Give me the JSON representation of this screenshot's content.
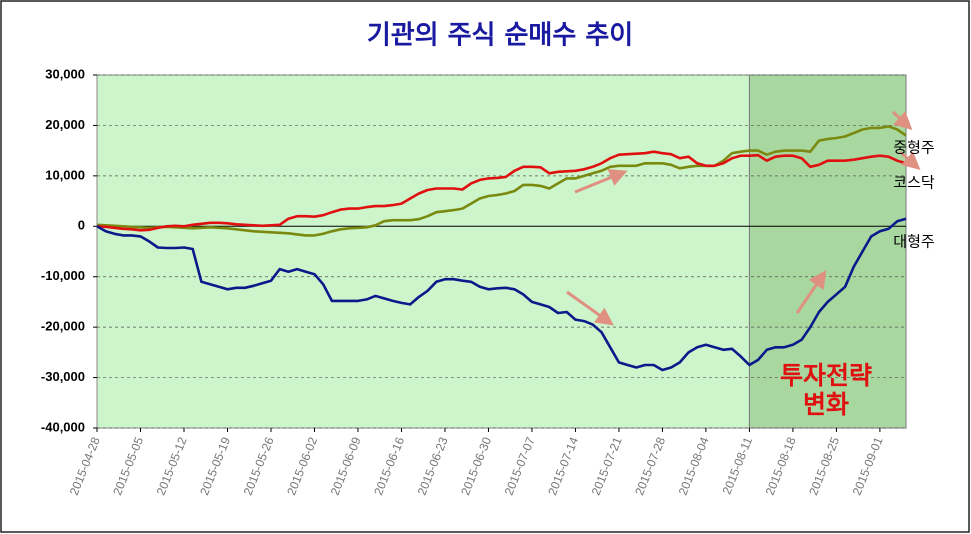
{
  "chart_data": {
    "type": "line",
    "title": "기관의 주식 순매수 추이",
    "annotation": [
      "투자전략",
      "변화"
    ],
    "categories": [
      "2015-04-28",
      null,
      null,
      null,
      null,
      "2015-05-05",
      null,
      null,
      null,
      null,
      "2015-05-12",
      null,
      null,
      null,
      null,
      "2015-05-19",
      null,
      null,
      null,
      null,
      "2015-05-26",
      null,
      null,
      null,
      null,
      "2015-06-02",
      null,
      null,
      null,
      null,
      "2015-06-09",
      null,
      null,
      null,
      null,
      "2015-06-16",
      null,
      null,
      null,
      null,
      "2015-06-23",
      null,
      null,
      null,
      null,
      "2015-06-30",
      null,
      null,
      null,
      null,
      "2015-07-07",
      null,
      null,
      null,
      null,
      "2015-07-14",
      null,
      null,
      null,
      null,
      "2015-07-21",
      null,
      null,
      null,
      null,
      "2015-07-28",
      null,
      null,
      null,
      null,
      "2015-08-04",
      null,
      null,
      null,
      null,
      "2015-08-11",
      null,
      null,
      null,
      null,
      "2015-08-18",
      null,
      null,
      null,
      null,
      "2015-08-25",
      null,
      null,
      null,
      null,
      "2015-09-01",
      null,
      null,
      null
    ],
    "series": [
      {
        "name": "중형주",
        "color": "#7a8a10",
        "values": [
          300,
          200,
          100,
          0,
          -100,
          -200,
          -300,
          -200,
          -100,
          -200,
          -300,
          -400,
          -300,
          -200,
          -300,
          -400,
          -600,
          -800,
          -1000,
          -1100,
          -1200,
          -1300,
          -1400,
          -1600,
          -1800,
          -1800,
          -1500,
          -1000,
          -600,
          -400,
          -300,
          -200,
          200,
          1000,
          1200,
          1200,
          1200,
          1400,
          2000,
          2800,
          3000,
          3200,
          3500,
          4500,
          5500,
          6000,
          6200,
          6500,
          7000,
          8200,
          8200,
          8000,
          7500,
          8500,
          9500,
          9500,
          10000,
          10500,
          11000,
          11800,
          12000,
          12000,
          12000,
          12500,
          12500,
          12500,
          12200,
          11500,
          11800,
          12000,
          12000,
          12000,
          13000,
          14500,
          14800,
          15000,
          15000,
          14200,
          14800,
          15000,
          15000,
          15000,
          14800,
          17000,
          17300,
          17500,
          17800,
          18500,
          19200,
          19500,
          19500,
          19800,
          19200,
          18000
        ]
      },
      {
        "name": "코스닥",
        "color": "#e01010",
        "values": [
          0,
          -100,
          -300,
          -500,
          -600,
          -800,
          -700,
          -300,
          0,
          100,
          0,
          300,
          500,
          700,
          700,
          600,
          400,
          300,
          200,
          100,
          200,
          300,
          1500,
          2000,
          2000,
          1900,
          2200,
          2800,
          3300,
          3500,
          3500,
          3800,
          4000,
          4000,
          4200,
          4500,
          5500,
          6500,
          7200,
          7500,
          7500,
          7500,
          7300,
          8500,
          9200,
          9500,
          9600,
          9800,
          11000,
          11800,
          11800,
          11700,
          10500,
          10800,
          10900,
          11000,
          11300,
          11800,
          12500,
          13500,
          14200,
          14300,
          14400,
          14500,
          14800,
          14500,
          14300,
          13500,
          13800,
          12500,
          12000,
          12000,
          12500,
          13500,
          14000,
          14000,
          14100,
          13000,
          13800,
          14000,
          14000,
          13500,
          11800,
          12200,
          13000,
          13000,
          13000,
          13200,
          13500,
          13800,
          14000,
          13800,
          13000,
          12500
        ]
      },
      {
        "name": "대형주",
        "color": "#0a1a8a",
        "values": [
          0,
          -1000,
          -1500,
          -1800,
          -1800,
          -2000,
          -3000,
          -4200,
          -4300,
          -4300,
          -4200,
          -4500,
          -11000,
          -11500,
          -12000,
          -12500,
          -12200,
          -12200,
          -11800,
          -11300,
          -10800,
          -8500,
          -9000,
          -8500,
          -9000,
          -9500,
          -11500,
          -14800,
          -14800,
          -14800,
          -14800,
          -14500,
          -13800,
          -14300,
          -14800,
          -15200,
          -15500,
          -14000,
          -12800,
          -11000,
          -10500,
          -10500,
          -10800,
          -11000,
          -12000,
          -12500,
          -12300,
          -12200,
          -12500,
          -13500,
          -15000,
          -15500,
          -16000,
          -17200,
          -17000,
          -18500,
          -18800,
          -19500,
          -21000,
          -24000,
          -27000,
          -27500,
          -28000,
          -27500,
          -27500,
          -28500,
          -28000,
          -27000,
          -25000,
          -24000,
          -23500,
          -24000,
          -24500,
          -24300,
          -25800,
          -27500,
          -26500,
          -24500,
          -24000,
          -24000,
          -23500,
          -22500,
          -20000,
          -17000,
          -15000,
          -13500,
          -12000,
          -8000,
          -5000,
          -2000,
          -1000,
          -500,
          1000,
          1500
        ]
      }
    ],
    "ylim": [
      -40000,
      30000
    ],
    "yticks": [
      {
        "value": 30000,
        "label": "30,000"
      },
      {
        "value": 20000,
        "label": "20,000"
      },
      {
        "value": 10000,
        "label": "10,000"
      },
      0,
      {
        "value": -10000,
        "label": "-10,000"
      },
      {
        "value": -20000,
        "label": "-20,000"
      },
      {
        "value": -30000,
        "label": "-30,000"
      },
      {
        "value": -40000,
        "label": "-40,000"
      }
    ],
    "grid": true,
    "background": "#ccf5cc",
    "highlight": {
      "from": 75,
      "color": "#a8d8a0"
    }
  }
}
